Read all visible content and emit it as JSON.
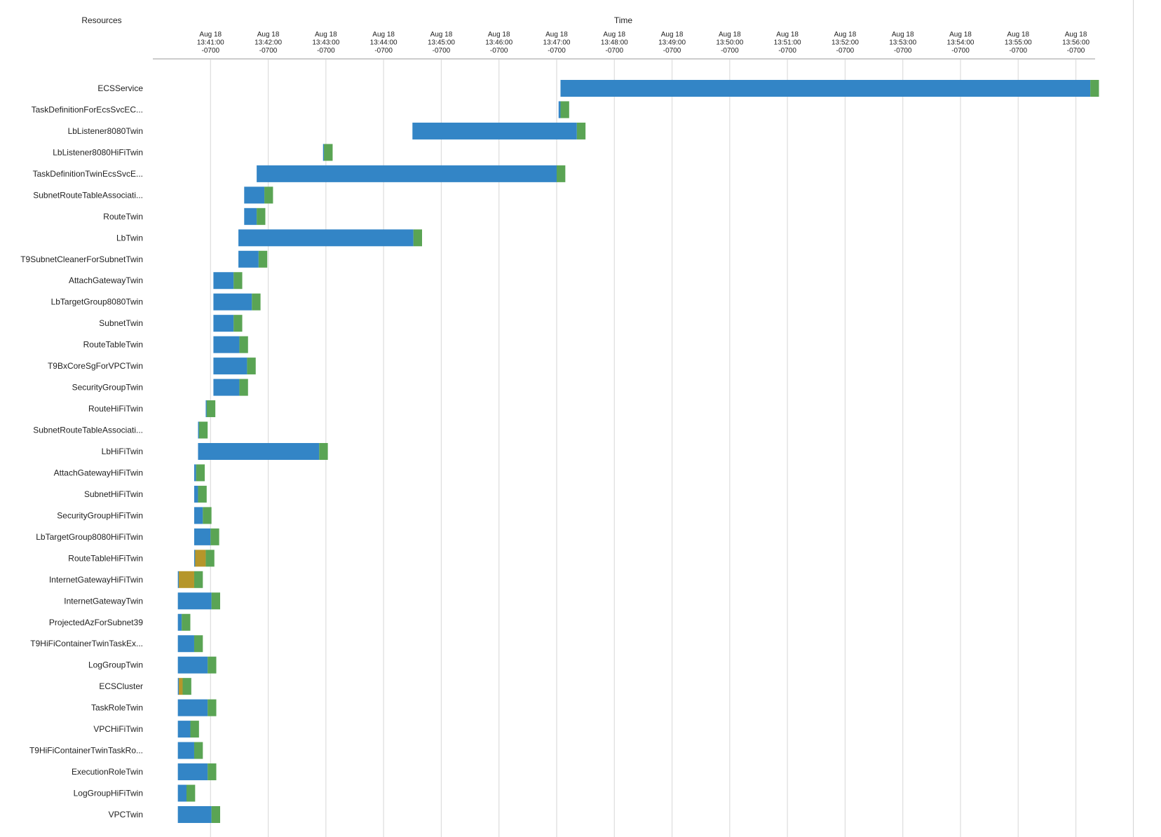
{
  "chart_data": {
    "type": "gantt",
    "title": "",
    "xlabel": "Time",
    "ylabel": "Resources",
    "time_unit": "seconds after Aug 18 13:40:00 -0700",
    "xlim": [
      0,
      980
    ],
    "x_ticks": [
      {
        "t": 60,
        "date": "Aug 18",
        "time": "13:41:00",
        "tz": "-0700"
      },
      {
        "t": 120,
        "date": "Aug 18",
        "time": "13:42:00",
        "tz": "-0700"
      },
      {
        "t": 180,
        "date": "Aug 18",
        "time": "13:43:00",
        "tz": "-0700"
      },
      {
        "t": 240,
        "date": "Aug 18",
        "time": "13:44:00",
        "tz": "-0700"
      },
      {
        "t": 300,
        "date": "Aug 18",
        "time": "13:45:00",
        "tz": "-0700"
      },
      {
        "t": 360,
        "date": "Aug 18",
        "time": "13:46:00",
        "tz": "-0700"
      },
      {
        "t": 420,
        "date": "Aug 18",
        "time": "13:47:00",
        "tz": "-0700"
      },
      {
        "t": 480,
        "date": "Aug 18",
        "time": "13:48:00",
        "tz": "-0700"
      },
      {
        "t": 540,
        "date": "Aug 18",
        "time": "13:49:00",
        "tz": "-0700"
      },
      {
        "t": 600,
        "date": "Aug 18",
        "time": "13:50:00",
        "tz": "-0700"
      },
      {
        "t": 660,
        "date": "Aug 18",
        "time": "13:51:00",
        "tz": "-0700"
      },
      {
        "t": 720,
        "date": "Aug 18",
        "time": "13:52:00",
        "tz": "-0700"
      },
      {
        "t": 780,
        "date": "Aug 18",
        "time": "13:53:00",
        "tz": "-0700"
      },
      {
        "t": 840,
        "date": "Aug 18",
        "time": "13:54:00",
        "tz": "-0700"
      },
      {
        "t": 900,
        "date": "Aug 18",
        "time": "13:55:00",
        "tz": "-0700"
      },
      {
        "t": 960,
        "date": "Aug 18",
        "time": "13:56:00",
        "tz": "-0700"
      }
    ],
    "colors": {
      "in_progress": "#3385c6",
      "complete": "#5aa454",
      "pending": "#b5962a",
      "grid": "#dddddd",
      "axis": "#cccccc"
    },
    "resources": [
      {
        "name": "ECSService",
        "start": 424,
        "segments": [
          {
            "status": "in_progress",
            "duration": 551
          },
          {
            "status": "complete",
            "duration": 9
          }
        ]
      },
      {
        "name": "TaskDefinitionForEcsSvcEC...",
        "start": 422,
        "segments": [
          {
            "status": "in_progress",
            "duration": 2
          },
          {
            "status": "complete",
            "duration": 9
          }
        ]
      },
      {
        "name": "LbListener8080Twin",
        "start": 270,
        "segments": [
          {
            "status": "in_progress",
            "duration": 171
          },
          {
            "status": "complete",
            "duration": 9
          }
        ]
      },
      {
        "name": "LbListener8080HiFiTwin",
        "start": 177,
        "segments": [
          {
            "status": "in_progress",
            "duration": 1
          },
          {
            "status": "complete",
            "duration": 9
          }
        ]
      },
      {
        "name": "TaskDefinitionTwinEcsSvcE...",
        "start": 108,
        "segments": [
          {
            "status": "in_progress",
            "duration": 312
          },
          {
            "status": "complete",
            "duration": 9
          }
        ]
      },
      {
        "name": "SubnetRouteTableAssociati...",
        "start": 95,
        "segments": [
          {
            "status": "in_progress",
            "duration": 21
          },
          {
            "status": "complete",
            "duration": 9
          }
        ]
      },
      {
        "name": "RouteTwin",
        "start": 95,
        "segments": [
          {
            "status": "in_progress",
            "duration": 13
          },
          {
            "status": "complete",
            "duration": 9
          }
        ]
      },
      {
        "name": "LbTwin",
        "start": 89,
        "segments": [
          {
            "status": "in_progress",
            "duration": 182
          },
          {
            "status": "complete",
            "duration": 9
          }
        ]
      },
      {
        "name": "T9SubnetCleanerForSubnetTwin",
        "start": 89,
        "segments": [
          {
            "status": "in_progress",
            "duration": 21
          },
          {
            "status": "complete",
            "duration": 9
          }
        ]
      },
      {
        "name": "AttachGatewayTwin",
        "start": 63,
        "segments": [
          {
            "status": "in_progress",
            "duration": 21
          },
          {
            "status": "complete",
            "duration": 9
          }
        ]
      },
      {
        "name": "LbTargetGroup8080Twin",
        "start": 63,
        "segments": [
          {
            "status": "in_progress",
            "duration": 40
          },
          {
            "status": "complete",
            "duration": 9
          }
        ]
      },
      {
        "name": "SubnetTwin",
        "start": 63,
        "segments": [
          {
            "status": "in_progress",
            "duration": 21
          },
          {
            "status": "complete",
            "duration": 9
          }
        ]
      },
      {
        "name": "RouteTableTwin",
        "start": 63,
        "segments": [
          {
            "status": "in_progress",
            "duration": 27
          },
          {
            "status": "complete",
            "duration": 9
          }
        ]
      },
      {
        "name": "T9BxCoreSgForVPCTwin",
        "start": 63,
        "segments": [
          {
            "status": "in_progress",
            "duration": 35
          },
          {
            "status": "complete",
            "duration": 9
          }
        ]
      },
      {
        "name": "SecurityGroupTwin",
        "start": 63,
        "segments": [
          {
            "status": "in_progress",
            "duration": 27
          },
          {
            "status": "complete",
            "duration": 9
          }
        ]
      },
      {
        "name": "RouteHiFiTwin",
        "start": 55,
        "segments": [
          {
            "status": "in_progress",
            "duration": 1
          },
          {
            "status": "complete",
            "duration": 9
          }
        ]
      },
      {
        "name": "SubnetRouteTableAssociati...",
        "start": 47,
        "segments": [
          {
            "status": "in_progress",
            "duration": 1
          },
          {
            "status": "complete",
            "duration": 9
          }
        ]
      },
      {
        "name": "LbHiFiTwin",
        "start": 47,
        "segments": [
          {
            "status": "in_progress",
            "duration": 126
          },
          {
            "status": "complete",
            "duration": 9
          }
        ]
      },
      {
        "name": "AttachGatewayHiFiTwin",
        "start": 43,
        "segments": [
          {
            "status": "in_progress",
            "duration": 2
          },
          {
            "status": "complete",
            "duration": 9
          }
        ]
      },
      {
        "name": "SubnetHiFiTwin",
        "start": 43,
        "segments": [
          {
            "status": "in_progress",
            "duration": 4
          },
          {
            "status": "complete",
            "duration": 9
          }
        ]
      },
      {
        "name": "SecurityGroupHiFiTwin",
        "start": 43,
        "segments": [
          {
            "status": "in_progress",
            "duration": 9
          },
          {
            "status": "complete",
            "duration": 9
          }
        ]
      },
      {
        "name": "LbTargetGroup8080HiFiTwin",
        "start": 43,
        "segments": [
          {
            "status": "in_progress",
            "duration": 17
          },
          {
            "status": "complete",
            "duration": 9
          }
        ]
      },
      {
        "name": "RouteTableHiFiTwin",
        "start": 43,
        "segments": [
          {
            "status": "in_progress",
            "duration": 1
          },
          {
            "status": "pending",
            "duration": 11
          },
          {
            "status": "complete",
            "duration": 9
          }
        ]
      },
      {
        "name": "InternetGatewayHiFiTwin",
        "start": 26,
        "segments": [
          {
            "status": "in_progress",
            "duration": 1
          },
          {
            "status": "pending",
            "duration": 16
          },
          {
            "status": "complete",
            "duration": 9
          }
        ]
      },
      {
        "name": "InternetGatewayTwin",
        "start": 26,
        "segments": [
          {
            "status": "in_progress",
            "duration": 35
          },
          {
            "status": "complete",
            "duration": 9
          }
        ]
      },
      {
        "name": "ProjectedAzForSubnet39",
        "start": 26,
        "segments": [
          {
            "status": "in_progress",
            "duration": 4
          },
          {
            "status": "complete",
            "duration": 9
          }
        ]
      },
      {
        "name": "T9HiFiContainerTwinTaskEx...",
        "start": 26,
        "segments": [
          {
            "status": "in_progress",
            "duration": 17
          },
          {
            "status": "complete",
            "duration": 9
          }
        ]
      },
      {
        "name": "LogGroupTwin",
        "start": 26,
        "segments": [
          {
            "status": "in_progress",
            "duration": 31
          },
          {
            "status": "complete",
            "duration": 9
          }
        ]
      },
      {
        "name": "ECSCluster",
        "start": 26,
        "segments": [
          {
            "status": "in_progress",
            "duration": 1
          },
          {
            "status": "pending",
            "duration": 4
          },
          {
            "status": "complete",
            "duration": 9
          }
        ]
      },
      {
        "name": "TaskRoleTwin",
        "start": 26,
        "segments": [
          {
            "status": "in_progress",
            "duration": 31
          },
          {
            "status": "complete",
            "duration": 9
          }
        ]
      },
      {
        "name": "VPCHiFiTwin",
        "start": 26,
        "segments": [
          {
            "status": "in_progress",
            "duration": 13
          },
          {
            "status": "complete",
            "duration": 9
          }
        ]
      },
      {
        "name": "T9HiFiContainerTwinTaskRo...",
        "start": 26,
        "segments": [
          {
            "status": "in_progress",
            "duration": 17
          },
          {
            "status": "complete",
            "duration": 9
          }
        ]
      },
      {
        "name": "ExecutionRoleTwin",
        "start": 26,
        "segments": [
          {
            "status": "in_progress",
            "duration": 31
          },
          {
            "status": "complete",
            "duration": 9
          }
        ]
      },
      {
        "name": "LogGroupHiFiTwin",
        "start": 26,
        "segments": [
          {
            "status": "in_progress",
            "duration": 9
          },
          {
            "status": "complete",
            "duration": 9
          }
        ]
      },
      {
        "name": "VPCTwin",
        "start": 26,
        "segments": [
          {
            "status": "in_progress",
            "duration": 35
          },
          {
            "status": "complete",
            "duration": 9
          }
        ]
      }
    ]
  }
}
